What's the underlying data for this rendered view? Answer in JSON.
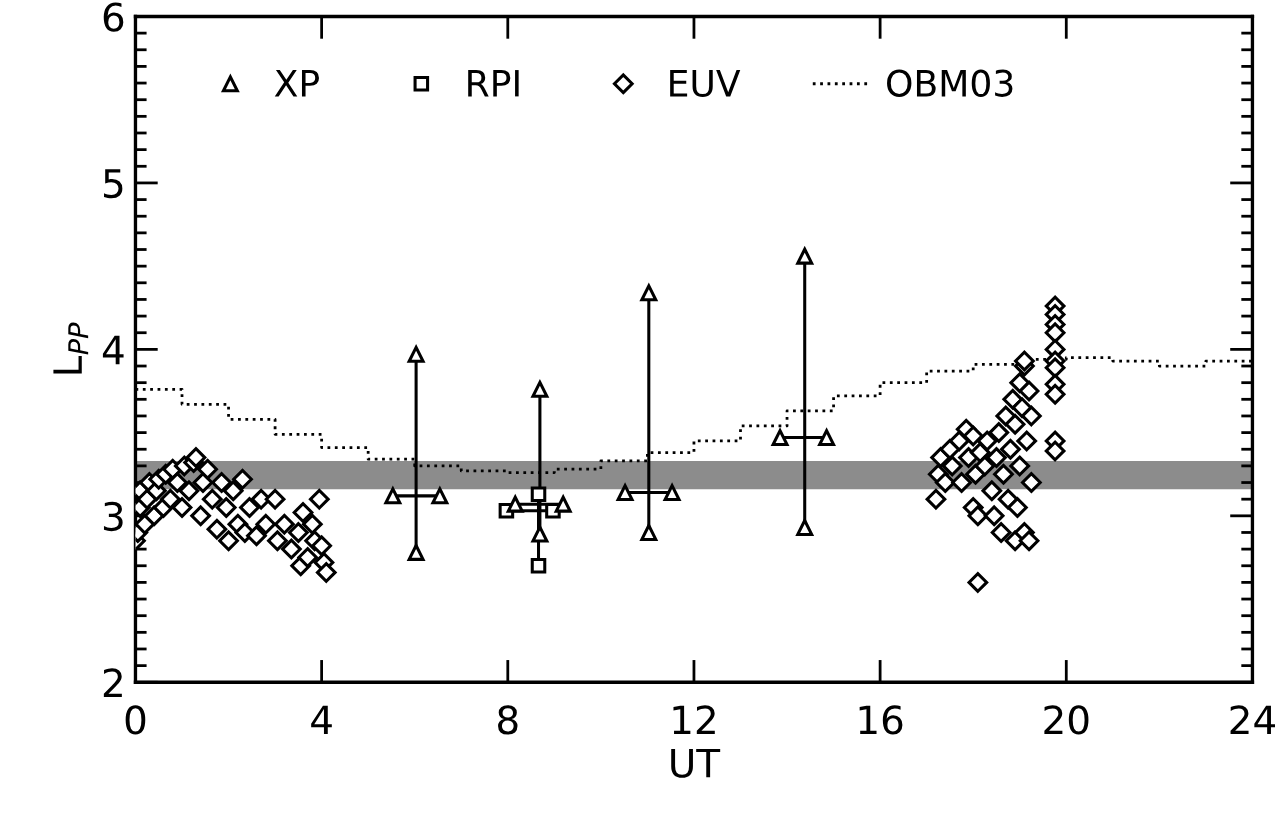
{
  "chart_data": {
    "type": "scatter",
    "xlabel": "UT",
    "ylabel": "L$_{PP}$",
    "xlim": [
      0,
      24
    ],
    "xticks": [
      0,
      4,
      8,
      12,
      16,
      20,
      24
    ],
    "ylim": [
      2,
      6
    ],
    "yticks": [
      2,
      3,
      4,
      5,
      6
    ],
    "grid": false,
    "legend": "top",
    "bands": [
      {
        "axis": "y",
        "from": 3.16,
        "to": 3.33,
        "color": "#8c8c8c"
      }
    ],
    "series": [
      {
        "name": "XP",
        "marker": "triangle",
        "color": "#000000",
        "x": [
          5.53,
          6.54,
          6.03,
          6.03,
          8.16,
          9.19,
          8.69,
          8.69,
          10.52,
          11.53,
          11.03,
          11.03,
          13.85,
          14.85,
          14.38,
          14.38
        ],
        "values": [
          3.12,
          3.12,
          2.78,
          3.97,
          3.07,
          3.07,
          2.89,
          3.76,
          3.14,
          3.14,
          2.9,
          4.34,
          3.47,
          3.47,
          2.93,
          4.56
        ]
      },
      {
        "type": "line",
        "line_style": "solid",
        "color": "#000000",
        "x": [
          5.53,
          6.54,
          null,
          6.03,
          6.03,
          null,
          8.16,
          9.19,
          null,
          8.69,
          8.69,
          null,
          10.52,
          11.53,
          null,
          11.03,
          11.03,
          null,
          13.85,
          14.85,
          null,
          14.38,
          14.38
        ],
        "values": [
          3.12,
          3.12,
          null,
          2.78,
          3.97,
          null,
          3.07,
          3.07,
          null,
          2.89,
          3.76,
          null,
          3.14,
          3.14,
          null,
          2.9,
          4.34,
          null,
          3.47,
          3.47,
          null,
          2.93,
          4.56
        ]
      },
      {
        "name": "RPI",
        "marker": "square",
        "color": "#000000",
        "x": [
          7.97,
          8.97,
          8.66,
          8.66
        ],
        "values": [
          3.03,
          3.03,
          2.7,
          3.13
        ]
      },
      {
        "type": "line",
        "line_style": "solid",
        "color": "#000000",
        "x": [
          7.97,
          8.97,
          null,
          8.66,
          8.66
        ],
        "values": [
          3.03,
          3.03,
          null,
          2.7,
          3.13
        ]
      },
      {
        "name": "EUV",
        "marker": "diamond",
        "color": "#000000",
        "x": [
          0.0,
          0.05,
          0.1,
          0.1,
          0.2,
          0.25,
          0.3,
          0.4,
          0.45,
          0.5,
          0.6,
          0.65,
          0.75,
          0.8,
          0.9,
          1.0,
          1.05,
          1.15,
          1.25,
          1.3,
          1.4,
          1.45,
          1.55,
          1.65,
          1.75,
          1.85,
          1.95,
          2.0,
          2.1,
          2.2,
          2.3,
          2.35,
          2.45,
          2.6,
          2.7,
          2.8,
          3.0,
          3.05,
          3.2,
          3.35,
          3.5,
          3.55,
          3.6,
          3.7,
          3.8,
          3.85,
          3.95,
          4.0,
          4.05,
          4.1,
          17.2,
          17.25,
          17.3,
          17.4,
          17.5,
          17.55,
          17.7,
          17.75,
          17.85,
          17.9,
          18.0,
          18.0,
          18.05,
          18.1,
          18.15,
          18.1,
          18.25,
          18.3,
          18.4,
          18.45,
          18.5,
          18.55,
          18.6,
          18.65,
          18.7,
          18.75,
          18.8,
          18.85,
          18.9,
          18.9,
          18.95,
          19.0,
          19.0,
          19.05,
          19.1,
          19.1,
          19.15,
          19.2,
          19.25,
          19.2,
          19.25,
          19.1,
          19.76,
          19.76,
          19.76,
          19.76,
          19.76,
          19.76,
          19.76,
          19.76,
          19.76,
          19.76,
          19.76
        ],
        "values": [
          2.85,
          2.9,
          3.05,
          3.15,
          2.95,
          3.1,
          3.2,
          3.0,
          3.15,
          3.22,
          3.05,
          3.25,
          3.1,
          3.28,
          3.2,
          3.05,
          3.3,
          3.15,
          3.32,
          3.35,
          3.0,
          3.2,
          3.28,
          3.1,
          2.92,
          3.2,
          3.05,
          2.85,
          3.15,
          2.95,
          3.22,
          2.9,
          3.05,
          2.88,
          3.1,
          2.95,
          3.1,
          2.85,
          2.95,
          2.8,
          2.9,
          2.7,
          3.02,
          2.75,
          2.95,
          2.85,
          3.1,
          2.82,
          2.72,
          2.66,
          3.1,
          3.25,
          3.35,
          3.2,
          3.4,
          3.3,
          3.45,
          3.2,
          3.52,
          3.35,
          3.05,
          3.48,
          3.25,
          3.0,
          3.38,
          2.6,
          3.3,
          3.45,
          3.15,
          3.0,
          3.35,
          3.5,
          2.9,
          3.25,
          3.6,
          3.1,
          3.4,
          3.7,
          2.85,
          3.55,
          3.05,
          3.8,
          3.3,
          3.65,
          3.9,
          2.9,
          3.45,
          3.75,
          3.2,
          2.85,
          3.6,
          3.93,
          4.26,
          4.21,
          4.15,
          4.1,
          4.0,
          3.93,
          3.89,
          3.79,
          3.73,
          3.45,
          3.39
        ]
      },
      {
        "name": "OBM03",
        "type": "step",
        "line_style": "dotted",
        "color": "#000000",
        "x": [
          0,
          1,
          2,
          3,
          4,
          5,
          6,
          7,
          8,
          9,
          10,
          11,
          12,
          13,
          14,
          15,
          16,
          17,
          18,
          19,
          20,
          21,
          22,
          23,
          24
        ],
        "values": [
          3.76,
          3.67,
          3.58,
          3.49,
          3.41,
          3.34,
          3.3,
          3.27,
          3.26,
          3.28,
          3.33,
          3.38,
          3.45,
          3.54,
          3.63,
          3.72,
          3.8,
          3.87,
          3.91,
          3.94,
          3.95,
          3.93,
          3.9,
          3.93,
          3.93
        ]
      }
    ]
  }
}
